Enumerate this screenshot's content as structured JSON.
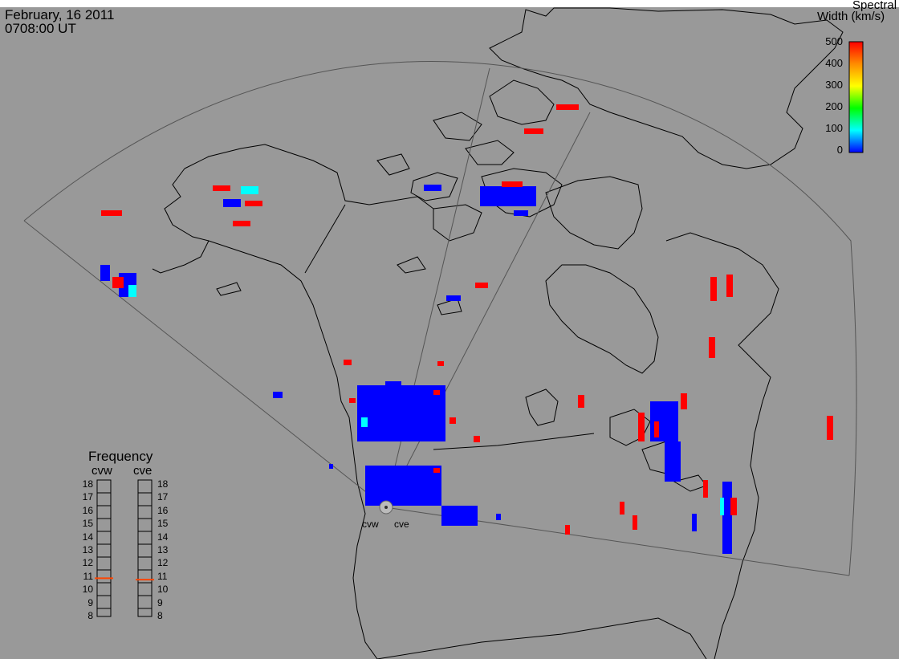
{
  "header": {
    "date": "February, 16 2011",
    "time": "0708:00 UT"
  },
  "colorbar": {
    "title_line1": "Spectral",
    "title_line2": "Width (km/s)",
    "ticks": [
      "500",
      "400",
      "300",
      "200",
      "100",
      "0"
    ],
    "min": 0,
    "max": 500,
    "colors": [
      "#ff0000",
      "#ff8c00",
      "#ffff00",
      "#00ff00",
      "#00ffff",
      "#0000ff"
    ]
  },
  "frequency_panel": {
    "title": "Frequency",
    "left_label": "cvw",
    "right_label": "cve",
    "ticks": [
      "18",
      "17",
      "16",
      "15",
      "14",
      "13",
      "12",
      "11",
      "10",
      "9",
      "8"
    ],
    "cvw_value": 10.8,
    "cve_value": 10.7,
    "marker_color": "#ff4500"
  },
  "radars": {
    "west_label": "cvw",
    "east_label": "cve"
  },
  "scatter_colors": {
    "low": "#0000ff",
    "high": "#ff0000",
    "mid": "#00ffff"
  }
}
